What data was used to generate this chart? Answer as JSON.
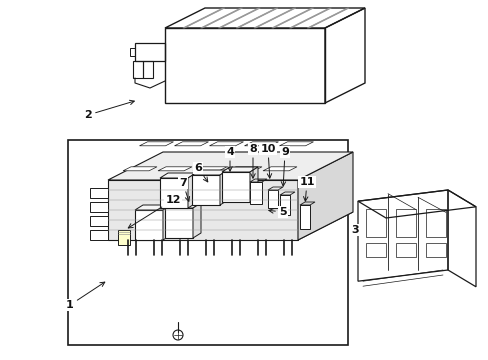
{
  "background_color": "#ffffff",
  "line_color": "#1a1a1a",
  "text_color": "#111111",
  "figsize": [
    4.89,
    3.6
  ],
  "dpi": 100
}
